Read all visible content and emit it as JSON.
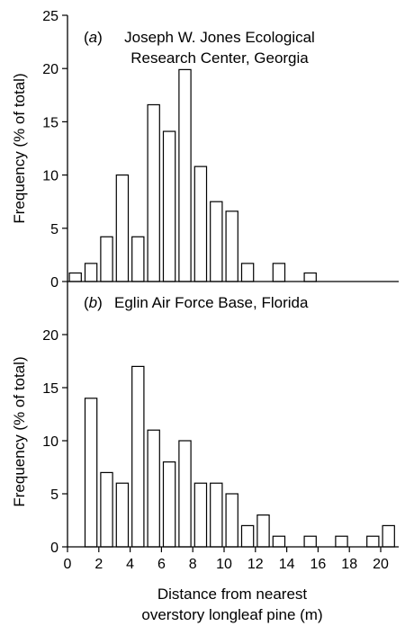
{
  "chart_data": [
    {
      "type": "bar",
      "panel_label": "(a)",
      "panel_letter": "a",
      "title_lines": [
        "Joseph W. Jones Ecological",
        "Research Center, Georgia"
      ],
      "ylabel": "Frequency (% of total)",
      "xlabel": "",
      "ylim": [
        0,
        25
      ],
      "yticks": [
        0,
        5,
        10,
        15,
        20,
        25
      ],
      "grid": false,
      "x": [
        0.5,
        1.5,
        2.5,
        3.5,
        4.5,
        5.5,
        6.5,
        7.5,
        8.5,
        9.5,
        10.5,
        11.5,
        12.5,
        13.5,
        14.5,
        15.5,
        16.5,
        17.5,
        18.5,
        19.5,
        20.5
      ],
      "values": [
        0.8,
        1.7,
        4.2,
        10.0,
        4.2,
        16.6,
        14.1,
        19.9,
        10.8,
        7.5,
        6.6,
        1.7,
        0,
        1.7,
        0,
        0.8,
        0,
        0,
        0,
        0,
        0
      ]
    },
    {
      "type": "bar",
      "panel_label": "(b)",
      "panel_letter": "b",
      "title_lines": [
        "Eglin Air Force Base, Florida"
      ],
      "ylabel": "Frequency (% of total)",
      "xlabel": "Distance from nearest overstory longleaf pine (m)",
      "xlabel_lines": [
        "Distance from nearest",
        "overstory longleaf pine (m)"
      ],
      "ylim": [
        0,
        25
      ],
      "yticks": [
        0,
        5,
        10,
        15,
        20
      ],
      "xticks": [
        0,
        2,
        4,
        6,
        8,
        10,
        12,
        14,
        16,
        18,
        20
      ],
      "xlim": [
        0,
        21
      ],
      "grid": false,
      "x": [
        0.5,
        1.5,
        2.5,
        3.5,
        4.5,
        5.5,
        6.5,
        7.5,
        8.5,
        9.5,
        10.5,
        11.5,
        12.5,
        13.5,
        14.5,
        15.5,
        16.5,
        17.5,
        18.5,
        19.5,
        20.5
      ],
      "values": [
        0,
        14,
        7,
        6,
        17,
        11,
        8,
        10,
        6,
        6,
        5,
        2,
        3,
        1,
        0,
        1,
        0,
        1,
        0,
        1,
        2
      ]
    }
  ]
}
